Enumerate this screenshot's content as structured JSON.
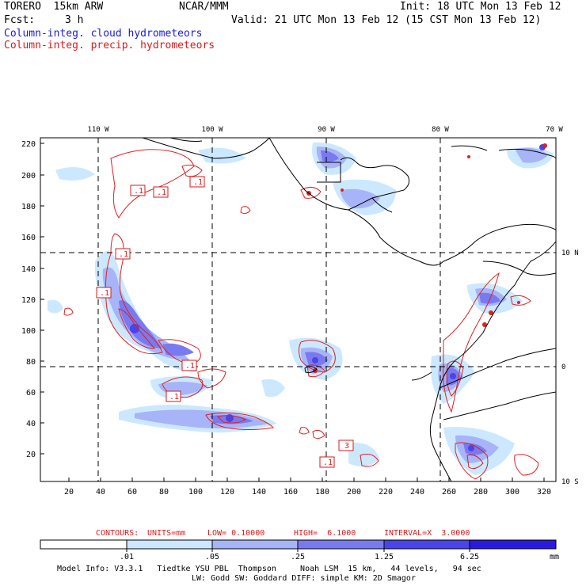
{
  "header": {
    "model": "TORERO  15km ARW",
    "center": "NCAR/MMM",
    "init": "Init: 18 UTC Mon 13 Feb 12",
    "fcst_label": "Fcst:",
    "fcst_value": "3 h",
    "valid": "Valid: 21 UTC Mon 13 Feb 12 (15 CST Mon 13 Feb 12)",
    "field1": "Column-integ. cloud hydrometeors",
    "field2": "Column-integ. precip. hydrometeors"
  },
  "colors": {
    "field1": "#1a1ad8",
    "field2": "#d81a1a",
    "contour": "#e02020",
    "coast": "#000000"
  },
  "map": {
    "top_longitudes": [
      "110 W",
      "100 W",
      "90 W",
      "80 W",
      "70 W"
    ],
    "right_latitudes": [
      "10 N",
      "0",
      "10 S"
    ],
    "x_ticks": [
      "20",
      "40",
      "60",
      "80",
      "100",
      "120",
      "140",
      "160",
      "180",
      "200",
      "220",
      "240",
      "260",
      "280",
      "300",
      "320"
    ],
    "y_ticks": [
      "220",
      "200",
      "180",
      "160",
      "140",
      "120",
      "100",
      "80",
      "60",
      "40",
      "20"
    ],
    "contour_labels": [
      ".1",
      ".1",
      ".1",
      ".1",
      ".1",
      ".1",
      ".1",
      ".1",
      "3",
      ".1"
    ]
  },
  "contour_info": {
    "label": "CONTOURS:",
    "units": "UNITS=mm",
    "low": "LOW= 0.10000",
    "high": "HIGH=  6.1000",
    "interval": "INTERVAL=X  3.0000"
  },
  "colorbar": {
    "levels": [
      ".01",
      ".05",
      ".25",
      "1.25",
      "6.25"
    ],
    "unit": "mm",
    "colors": [
      "#ffffff",
      "#cce8ff",
      "#a8b4f8",
      "#7a7af0",
      "#4a44ea",
      "#2a1ae0"
    ]
  },
  "footer": {
    "line1": "Model Info: V3.3.1   Tiedtke YSU PBL  Thompson     Noah LSM  15 km,   44 levels,   94 sec",
    "line2": "LW: Godd SW: Goddard DIFF: simple KM: 2D Smagor"
  }
}
